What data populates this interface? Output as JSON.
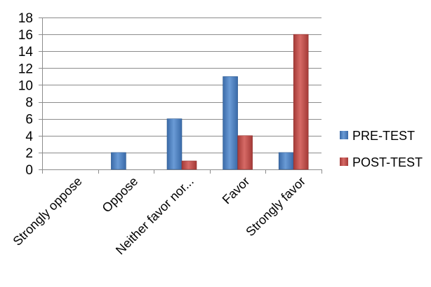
{
  "chart_data": {
    "type": "bar",
    "categories": [
      "Strongly oppose",
      "Oppose",
      "Neither favor nor...",
      "Favor",
      "Strongly favor"
    ],
    "series": [
      {
        "name": "PRE-TEST",
        "values": [
          0,
          2,
          6,
          11,
          2
        ],
        "color": "#4F81BD"
      },
      {
        "name": "POST-TEST",
        "values": [
          0,
          0,
          1,
          4,
          16
        ],
        "color": "#C0504D"
      }
    ],
    "yticks": [
      0,
      2,
      4,
      6,
      8,
      10,
      12,
      14,
      16,
      18
    ],
    "ylim": [
      0,
      18
    ],
    "grid": true,
    "legend_position": "right"
  }
}
